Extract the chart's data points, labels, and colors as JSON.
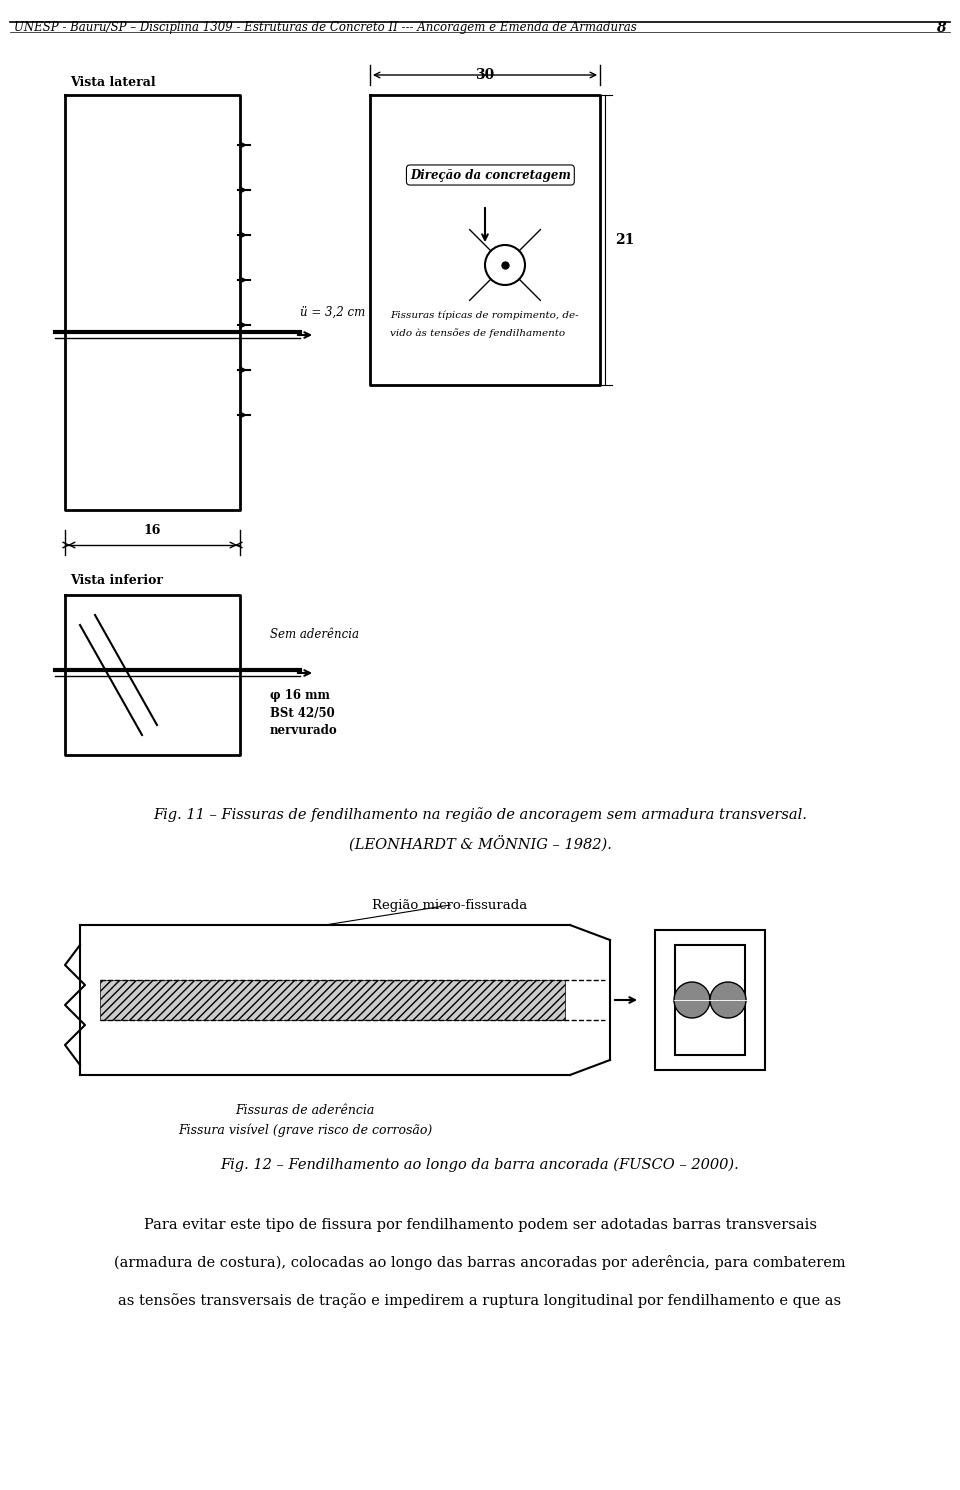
{
  "header_text": "UNESP - Bauru/SP – Disciplina 1309 - Estruturas de Concreto II --- Ancoragem e Emenda de Armaduras",
  "page_number": "8",
  "fig11_caption": "Fig. 11 – Fissuras de fendilhamento na região de ancoragem sem armadura transversal.",
  "fig11_subcaption": "(LEONHARDT & MÖNNIG – 1982).",
  "fig12_caption": "Fig. 12 – Fendilhamento ao longo da barra ancorada (FUSCO – 2000).",
  "paragraph_text": "Para evitar este tipo de fissura por fendilhamento podem ser adotadas barras transversais (armadura de costura), colocadas ao longo das barras ancoradas por aderência, para combaterem as tensões transversais de tração e impedirem a ruptura longitudinal por fendilhamento e que as",
  "background_color": "#ffffff",
  "text_color": "#000000",
  "line_color": "#000000"
}
